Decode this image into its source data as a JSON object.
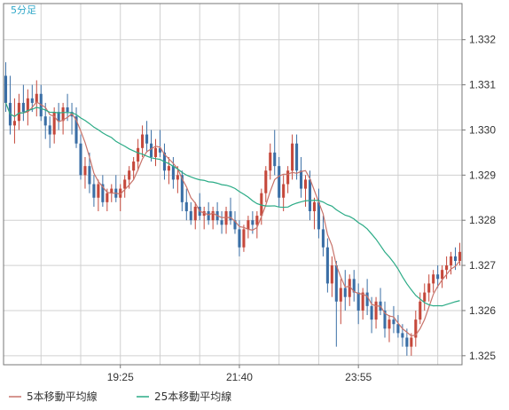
{
  "chart_data": {
    "type": "candlestick",
    "title": "5分足",
    "y_ticks": [
      "1.332",
      "1.331",
      "1.330",
      "1.329",
      "1.328",
      "1.327",
      "1.326",
      "1.325"
    ],
    "y_tick_values": [
      1.332,
      1.331,
      1.33,
      1.329,
      1.328,
      1.327,
      1.326,
      1.325
    ],
    "ylim": [
      1.3248,
      1.3328
    ],
    "x_ticks": [
      "19:25",
      "21:40",
      "23:55"
    ],
    "x_tick_index": [
      26,
      53,
      80
    ],
    "candle_count": 104,
    "colors": {
      "up": "#c5483b",
      "down": "#3a6ea5",
      "ma5": "#c8736a",
      "ma25": "#2bab86",
      "grid": "#d0d0d0",
      "axis_text": "#333333",
      "title": "#2fa7c8"
    },
    "ohlc": [
      [
        1.3312,
        1.3315,
        1.3304,
        1.3306
      ],
      [
        1.3306,
        1.3312,
        1.3299,
        1.3301
      ],
      [
        1.3301,
        1.3307,
        1.3297,
        1.3302
      ],
      [
        1.3302,
        1.3308,
        1.33,
        1.3306
      ],
      [
        1.3306,
        1.331,
        1.3302,
        1.3304
      ],
      [
        1.3304,
        1.3309,
        1.3301,
        1.3307
      ],
      [
        1.3307,
        1.331,
        1.3304,
        1.3306
      ],
      [
        1.3306,
        1.3311,
        1.3303,
        1.3308
      ],
      [
        1.3308,
        1.331,
        1.3302,
        1.3303
      ],
      [
        1.3303,
        1.3306,
        1.3298,
        1.3301
      ],
      [
        1.3301,
        1.3303,
        1.3296,
        1.3299
      ],
      [
        1.3299,
        1.3305,
        1.3297,
        1.3304
      ],
      [
        1.3304,
        1.3306,
        1.33,
        1.3302
      ],
      [
        1.3302,
        1.3306,
        1.3299,
        1.3305
      ],
      [
        1.3305,
        1.3308,
        1.3302,
        1.3304
      ],
      [
        1.3304,
        1.3306,
        1.3299,
        1.3303
      ],
      [
        1.3303,
        1.3305,
        1.3296,
        1.3297
      ],
      [
        1.3297,
        1.3299,
        1.3289,
        1.329
      ],
      [
        1.329,
        1.3294,
        1.3287,
        1.3292
      ],
      [
        1.3292,
        1.3295,
        1.3286,
        1.3288
      ],
      [
        1.3288,
        1.329,
        1.3283,
        1.3285
      ],
      [
        1.3285,
        1.3289,
        1.3282,
        1.3288
      ],
      [
        1.3288,
        1.329,
        1.3283,
        1.3284
      ],
      [
        1.3284,
        1.3287,
        1.3282,
        1.3286
      ],
      [
        1.3286,
        1.3288,
        1.3284,
        1.3287
      ],
      [
        1.3287,
        1.329,
        1.3284,
        1.3285
      ],
      [
        1.3285,
        1.3288,
        1.3282,
        1.3287
      ],
      [
        1.3287,
        1.329,
        1.3285,
        1.3289
      ],
      [
        1.3289,
        1.3292,
        1.3287,
        1.3291
      ],
      [
        1.3291,
        1.3294,
        1.3289,
        1.3293
      ],
      [
        1.3293,
        1.3298,
        1.3291,
        1.3296
      ],
      [
        1.3296,
        1.3301,
        1.3294,
        1.3299
      ],
      [
        1.3299,
        1.3302,
        1.3295,
        1.3297
      ],
      [
        1.3297,
        1.33,
        1.3293,
        1.3294
      ],
      [
        1.3294,
        1.3298,
        1.3292,
        1.3296
      ],
      [
        1.3296,
        1.33,
        1.3294,
        1.3295
      ],
      [
        1.3295,
        1.3297,
        1.3289,
        1.3291
      ],
      [
        1.3291,
        1.3294,
        1.3288,
        1.3292
      ],
      [
        1.3292,
        1.3294,
        1.3287,
        1.3289
      ],
      [
        1.3289,
        1.3292,
        1.3286,
        1.329
      ],
      [
        1.329,
        1.3291,
        1.3282,
        1.3284
      ],
      [
        1.3284,
        1.3287,
        1.328,
        1.3282
      ],
      [
        1.3282,
        1.3284,
        1.3279,
        1.328
      ],
      [
        1.328,
        1.3284,
        1.3278,
        1.3283
      ],
      [
        1.3283,
        1.3286,
        1.328,
        1.3281
      ],
      [
        1.3281,
        1.3283,
        1.3278,
        1.3282
      ],
      [
        1.3282,
        1.3284,
        1.3279,
        1.328
      ],
      [
        1.328,
        1.3283,
        1.3278,
        1.3282
      ],
      [
        1.3282,
        1.3284,
        1.3279,
        1.328
      ],
      [
        1.328,
        1.3282,
        1.3277,
        1.3279
      ],
      [
        1.3279,
        1.3283,
        1.3277,
        1.3282
      ],
      [
        1.3282,
        1.3285,
        1.3279,
        1.328
      ],
      [
        1.328,
        1.3282,
        1.3277,
        1.3278
      ],
      [
        1.3278,
        1.328,
        1.3272,
        1.3274
      ],
      [
        1.3274,
        1.3279,
        1.3273,
        1.3278
      ],
      [
        1.3278,
        1.3281,
        1.3276,
        1.328
      ],
      [
        1.328,
        1.3282,
        1.3277,
        1.3279
      ],
      [
        1.3279,
        1.3282,
        1.3276,
        1.3281
      ],
      [
        1.3281,
        1.3287,
        1.3279,
        1.3286
      ],
      [
        1.3286,
        1.3292,
        1.3284,
        1.3291
      ],
      [
        1.3291,
        1.3297,
        1.3289,
        1.3295
      ],
      [
        1.3295,
        1.33,
        1.329,
        1.3292
      ],
      [
        1.3292,
        1.3294,
        1.3283,
        1.3285
      ],
      [
        1.3285,
        1.329,
        1.3282,
        1.3288
      ],
      [
        1.3288,
        1.3292,
        1.3286,
        1.3291
      ],
      [
        1.3291,
        1.3299,
        1.3289,
        1.3297
      ],
      [
        1.3297,
        1.3299,
        1.3289,
        1.3291
      ],
      [
        1.3291,
        1.3294,
        1.3285,
        1.3287
      ],
      [
        1.3287,
        1.329,
        1.3283,
        1.3289
      ],
      [
        1.3289,
        1.3291,
        1.328,
        1.3282
      ],
      [
        1.3282,
        1.3285,
        1.3278,
        1.3284
      ],
      [
        1.3284,
        1.3287,
        1.3276,
        1.3278
      ],
      [
        1.3278,
        1.3281,
        1.3272,
        1.3274
      ],
      [
        1.3274,
        1.3276,
        1.3264,
        1.3266
      ],
      [
        1.3266,
        1.3272,
        1.3263,
        1.327
      ],
      [
        1.327,
        1.3271,
        1.3252,
        1.3262
      ],
      [
        1.3262,
        1.3267,
        1.3257,
        1.3265
      ],
      [
        1.3265,
        1.3269,
        1.326,
        1.3263
      ],
      [
        1.3263,
        1.3268,
        1.3261,
        1.3267
      ],
      [
        1.3267,
        1.3269,
        1.3262,
        1.3264
      ],
      [
        1.3264,
        1.3266,
        1.3257,
        1.326
      ],
      [
        1.326,
        1.3265,
        1.3258,
        1.3264
      ],
      [
        1.3264,
        1.3267,
        1.3259,
        1.3261
      ],
      [
        1.3261,
        1.3263,
        1.3255,
        1.3258
      ],
      [
        1.3258,
        1.3263,
        1.3256,
        1.3262
      ],
      [
        1.3262,
        1.3265,
        1.3259,
        1.326
      ],
      [
        1.326,
        1.3262,
        1.3254,
        1.3256
      ],
      [
        1.3256,
        1.3259,
        1.3253,
        1.3258
      ],
      [
        1.3258,
        1.3261,
        1.3255,
        1.3257
      ],
      [
        1.3257,
        1.3259,
        1.3254,
        1.3255
      ],
      [
        1.3255,
        1.3257,
        1.3252,
        1.3254
      ],
      [
        1.3254,
        1.3256,
        1.325,
        1.3252
      ],
      [
        1.3252,
        1.3255,
        1.325,
        1.3254
      ],
      [
        1.3254,
        1.326,
        1.3252,
        1.3258
      ],
      [
        1.3258,
        1.3264,
        1.3257,
        1.3262
      ],
      [
        1.3262,
        1.3266,
        1.326,
        1.3264
      ],
      [
        1.3264,
        1.3268,
        1.3262,
        1.3266
      ],
      [
        1.3266,
        1.3269,
        1.3264,
        1.3268
      ],
      [
        1.3268,
        1.327,
        1.3265,
        1.3267
      ],
      [
        1.3267,
        1.327,
        1.3265,
        1.3269
      ],
      [
        1.3269,
        1.3272,
        1.3267,
        1.327
      ],
      [
        1.327,
        1.3273,
        1.3268,
        1.3272
      ],
      [
        1.3272,
        1.3274,
        1.3269,
        1.3271
      ],
      [
        1.3271,
        1.3275,
        1.327,
        1.3273
      ]
    ],
    "series": [
      {
        "name": "5本移動平均線",
        "color": "#c8736a",
        "period": 5
      },
      {
        "name": "25本移動平均線",
        "color": "#2bab86",
        "period": 25
      }
    ]
  },
  "legend": {
    "ma5_label": "5本移動平均線",
    "ma25_label": "25本移動平均線"
  }
}
